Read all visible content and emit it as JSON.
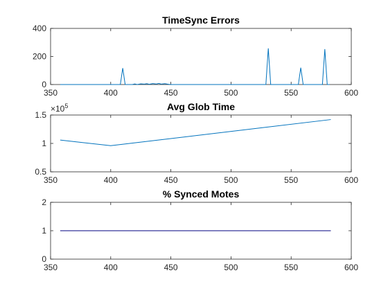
{
  "chart_data": [
    {
      "type": "line",
      "title": "TimeSync Errors",
      "xlim": [
        350,
        600
      ],
      "ylim": [
        0,
        400
      ],
      "x_ticks": [
        "350",
        "400",
        "450",
        "500",
        "550",
        "600"
      ],
      "y_ticks": [
        "0",
        "200",
        "400"
      ],
      "series": [
        {
          "color": "#0072BD",
          "x": [
            358,
            405,
            408,
            410,
            412,
            418,
            420,
            422,
            425,
            428,
            430,
            432,
            435,
            438,
            440,
            442,
            445,
            448,
            450,
            455,
            500,
            527,
            529,
            531,
            533,
            553,
            556,
            558,
            560,
            562,
            574,
            576,
            578,
            580,
            582
          ],
          "y": [
            0,
            0,
            0,
            117,
            0,
            0,
            4,
            0,
            5,
            3,
            6,
            2,
            7,
            4,
            8,
            3,
            6,
            2,
            0,
            0,
            0,
            0,
            0,
            258,
            0,
            0,
            0,
            120,
            0,
            0,
            0,
            0,
            252,
            0,
            0
          ]
        }
      ]
    },
    {
      "type": "line",
      "title": "Avg Glob Time",
      "xlim": [
        350,
        600
      ],
      "ylim": [
        0.5,
        1.5
      ],
      "y_multiplier": "×10",
      "y_exponent": "5",
      "x_ticks": [
        "350",
        "400",
        "450",
        "500",
        "550",
        "600"
      ],
      "y_ticks": [
        "0.5",
        "1",
        "1.5"
      ],
      "series": [
        {
          "color": "#0072BD",
          "x": [
            358,
            400,
            583
          ],
          "y": [
            1.06,
            0.96,
            1.42
          ]
        }
      ]
    },
    {
      "type": "line",
      "title": "% Synced Motes",
      "xlim": [
        350,
        600
      ],
      "ylim": [
        0,
        2
      ],
      "x_ticks": [
        "350",
        "400",
        "450",
        "500",
        "550",
        "600"
      ],
      "y_ticks": [
        "0",
        "1",
        "2"
      ],
      "series": [
        {
          "color": "#000080",
          "x": [
            358,
            583
          ],
          "y": [
            1,
            1
          ]
        }
      ]
    }
  ]
}
